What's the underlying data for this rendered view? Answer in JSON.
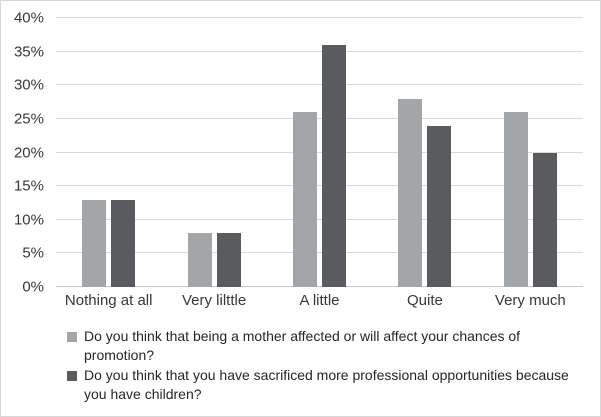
{
  "chart_data": {
    "type": "bar",
    "categories": [
      "Nothing at all",
      "Very lilttle",
      "A little",
      "Quite",
      "Very much"
    ],
    "series": [
      {
        "name": "Do you think that being a mother affected or will affect your chances of promotion?",
        "values": [
          13,
          8,
          26,
          28,
          26
        ],
        "color": "#a3a6a9"
      },
      {
        "name": "Do you think that you have sacrificed more professional opportunities because you have children?",
        "values": [
          13,
          8,
          36,
          24,
          20
        ],
        "color": "#595b5f"
      }
    ],
    "title": "",
    "xlabel": "",
    "ylabel": "",
    "ylim": [
      0,
      40
    ],
    "yticks": [
      0,
      5,
      10,
      15,
      20,
      25,
      30,
      35,
      40
    ],
    "ytick_suffix": "%",
    "grid": true,
    "legend_position": "bottom",
    "colors": {
      "gridline": "#d9d9d9",
      "axis_line": "#c9c9c9",
      "tick_text": "#383838",
      "legend_text": "#262626",
      "chart_border": "#d7d7d7",
      "background": "#ffffff"
    }
  }
}
